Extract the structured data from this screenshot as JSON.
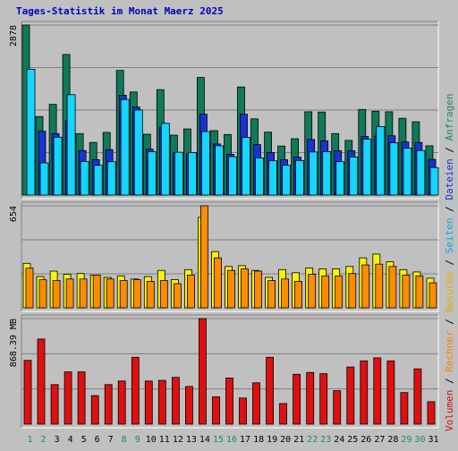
{
  "colors": {
    "background": "#c0c0c0",
    "plot_bg": "#c0c0c0",
    "grid": "#808080",
    "title": "#0000c0",
    "anfragen": "#0f7a5a",
    "dateien": "#1633d6",
    "seiten": "#14d6ff",
    "besuche": "#f8f400",
    "rechner": "#ff8c00",
    "volumen": "#e01010",
    "weekday_label": "#000000",
    "weekend_label": "#208a5a"
  },
  "chart_data": {
    "type": "bar",
    "title": "Tages-Statistik im Monat Maerz 2025",
    "categories": [
      "1",
      "2",
      "3",
      "4",
      "5",
      "6",
      "7",
      "8",
      "9",
      "10",
      "11",
      "12",
      "13",
      "14",
      "15",
      "16",
      "17",
      "18",
      "19",
      "20",
      "21",
      "22",
      "23",
      "24",
      "25",
      "26",
      "27",
      "28",
      "29",
      "30",
      "31"
    ],
    "weekend_days": [
      "1",
      "2",
      "8",
      "9",
      "15",
      "16",
      "22",
      "23",
      "29",
      "30"
    ],
    "right_legend": [
      {
        "text": "Volumen",
        "color": "#cc1010"
      },
      {
        "text": " / ",
        "color": "#000000"
      },
      {
        "text": "Rechner",
        "color": "#ff8000"
      },
      {
        "text": " / ",
        "color": "#000000"
      },
      {
        "text": "Besuche",
        "color": "#e0b000"
      },
      {
        "text": " / ",
        "color": "#000000"
      },
      {
        "text": "Seiten",
        "color": "#00b0e0"
      },
      {
        "text": " / ",
        "color": "#000000"
      },
      {
        "text": "Dateien",
        "color": "#1633d6"
      },
      {
        "text": " / ",
        "color": "#000000"
      },
      {
        "text": "Anfragen",
        "color": "#208a5a"
      }
    ],
    "panels": [
      {
        "id": "requests",
        "max_label": "2878",
        "ymax": 2878,
        "series": [
          {
            "name": "Anfragen",
            "color_key": "anfragen",
            "values": [
              2878,
              1330,
              1535,
              2380,
              1040,
              890,
              1060,
              2110,
              1745,
              1030,
              1785,
              1015,
              1120,
              1990,
              1090,
              1025,
              1830,
              1290,
              1065,
              830,
              955,
              1410,
              1405,
              1040,
              925,
              1450,
              1420,
              1410,
              1300,
              1240,
              835
            ]
          },
          {
            "name": "Dateien",
            "color_key": "dateien",
            "values": [
              0,
              1080,
              1040,
              1260,
              755,
              600,
              770,
              1690,
              1490,
              775,
              1140,
              715,
              700,
              1370,
              865,
              690,
              1370,
              855,
              720,
              600,
              640,
              940,
              920,
              750,
              750,
              990,
              1000,
              1005,
              900,
              890,
              605
            ]
          },
          {
            "name": "Seiten",
            "color_key": "seiten",
            "values": [
              2130,
              545,
              980,
              1700,
              570,
              505,
              565,
              1620,
              1440,
              735,
              1215,
              725,
              720,
              1075,
              835,
              650,
              975,
              630,
              580,
              505,
              585,
              730,
              735,
              565,
              645,
              945,
              1160,
              885,
              795,
              755,
              465
            ]
          }
        ]
      },
      {
        "id": "visits",
        "max_label": "654",
        "ymax": 654,
        "series": [
          {
            "name": "Besuche",
            "color_key": "besuche",
            "values": [
              285,
              200,
              235,
              215,
              220,
              210,
              195,
              205,
              185,
              200,
              240,
              180,
              245,
              580,
              360,
              265,
              270,
              240,
              195,
              245,
              225,
              255,
              250,
              250,
              265,
              320,
              345,
              295,
              245,
              230,
              190
            ]
          },
          {
            "name": "Rechner",
            "color_key": "rechner",
            "values": [
              255,
              180,
              175,
              185,
              185,
              210,
              185,
              175,
              180,
              170,
              175,
              155,
              210,
              654,
              320,
              240,
              250,
              235,
              175,
              185,
              170,
              215,
              205,
              205,
              220,
              275,
              280,
              265,
              210,
              205,
              160
            ]
          }
        ]
      },
      {
        "id": "volume",
        "max_label": "868.39 MB",
        "ymax": 868.39,
        "series": [
          {
            "name": "Volumen",
            "color_key": "volumen",
            "values": [
              525,
              700,
              325,
              430,
              430,
              235,
              325,
              355,
              550,
              355,
              360,
              385,
              310,
              868.39,
              225,
              380,
              215,
              340,
              550,
              170,
              410,
              425,
              415,
              275,
              470,
              520,
              545,
              520,
              260,
              455,
              185
            ]
          }
        ]
      }
    ]
  }
}
